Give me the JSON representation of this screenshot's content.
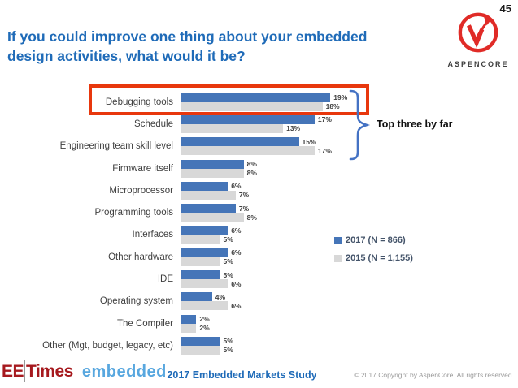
{
  "header": {
    "page_number": "45",
    "brand_name": "ASPENCORE"
  },
  "title": "If you could improve one thing about your embedded design activities, what would it be?",
  "chart_data": {
    "type": "bar",
    "orientation": "horizontal",
    "title": "",
    "xlabel": "",
    "ylabel": "",
    "value_suffix": "%",
    "xlim": [
      0,
      21
    ],
    "grid": false,
    "legend_position": "right-middle",
    "categories": [
      "Debugging tools",
      "Schedule",
      "Engineering team skill level",
      "Firmware itself",
      "Microprocessor",
      "Programming tools",
      "Interfaces",
      "Other hardware",
      "IDE",
      "Operating system",
      "The Compiler",
      "Other (Mgt, budget, legacy, etc)"
    ],
    "series": [
      {
        "name": "2017 (N = 866)",
        "color": "#4575b8",
        "values": [
          19,
          17,
          15,
          8,
          6,
          7,
          6,
          6,
          5,
          4,
          2,
          5
        ]
      },
      {
        "name": "2015 (N = 1,155)",
        "color": "#d8d8d8",
        "values": [
          18,
          13,
          17,
          8,
          7,
          8,
          5,
          5,
          6,
          6,
          2,
          5
        ]
      }
    ],
    "annotation": "Top three by far",
    "highlighted_category": "Debugging tools"
  },
  "colors": {
    "title_blue": "#1f6bb8",
    "highlight_red": "#e8370d",
    "brace_blue": "#4472c4",
    "bar_2017": "#4575b8",
    "bar_2015": "#d8d8d8",
    "brand_red": "#e02b27",
    "eetimes_red": "#a6191e",
    "embedded_blue": "#58a7df"
  },
  "footer": {
    "logo_ee": "EE",
    "logo_times": "Times",
    "logo_embedded": "embedded",
    "study_title": "2017 Embedded Markets Study",
    "copyright": "© 2017 Copyright by AspenCore. All rights reserved."
  }
}
